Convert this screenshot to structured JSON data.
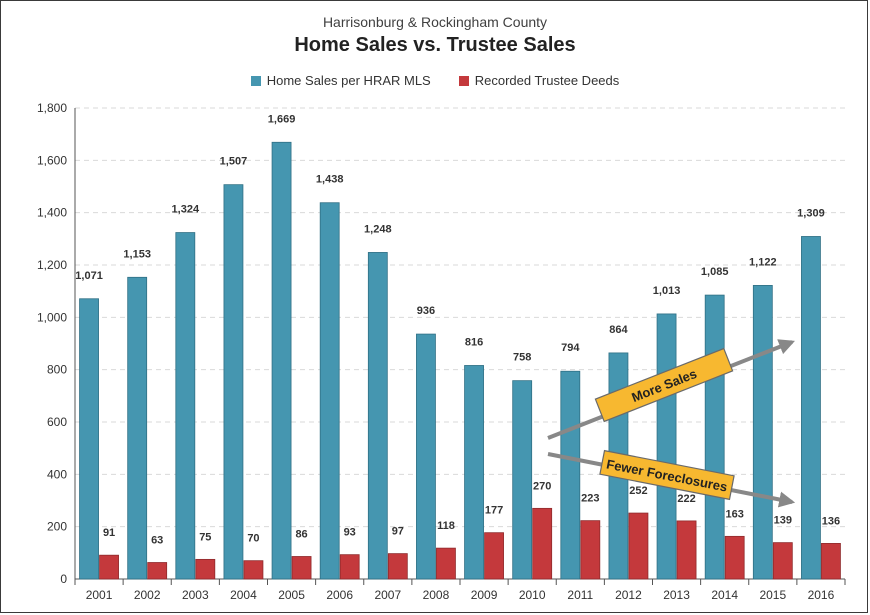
{
  "chart_data": {
    "type": "bar",
    "subtitle": "Harrisonburg & Rockingham County",
    "title": "Home Sales vs. Trustee Sales",
    "categories": [
      "2001",
      "2002",
      "2003",
      "2004",
      "2005",
      "2006",
      "2007",
      "2008",
      "2009",
      "2010",
      "2011",
      "2012",
      "2013",
      "2014",
      "2015",
      "2016"
    ],
    "series": [
      {
        "name": "Home Sales per HRAR MLS",
        "color": "#4596b0",
        "values": [
          1071,
          1153,
          1324,
          1507,
          1669,
          1438,
          1248,
          936,
          816,
          758,
          794,
          864,
          1013,
          1085,
          1122,
          1309
        ]
      },
      {
        "name": "Recorded Trustee Deeds",
        "color": "#c4393c",
        "values": [
          91,
          63,
          75,
          70,
          86,
          93,
          97,
          118,
          177,
          270,
          223,
          252,
          222,
          163,
          139,
          136
        ]
      }
    ],
    "ylim": [
      0,
      1800
    ],
    "yticks": [
      "0",
      "200",
      "400",
      "600",
      "800",
      "1,000",
      "1,200",
      "1,400",
      "1,600",
      "1,800"
    ],
    "grid": true,
    "legend_position": "top-center",
    "annotations": [
      "More Sales",
      "Fewer Foreclosures"
    ],
    "annotation_color": "#f7b830",
    "arrow_color": "#888888"
  }
}
